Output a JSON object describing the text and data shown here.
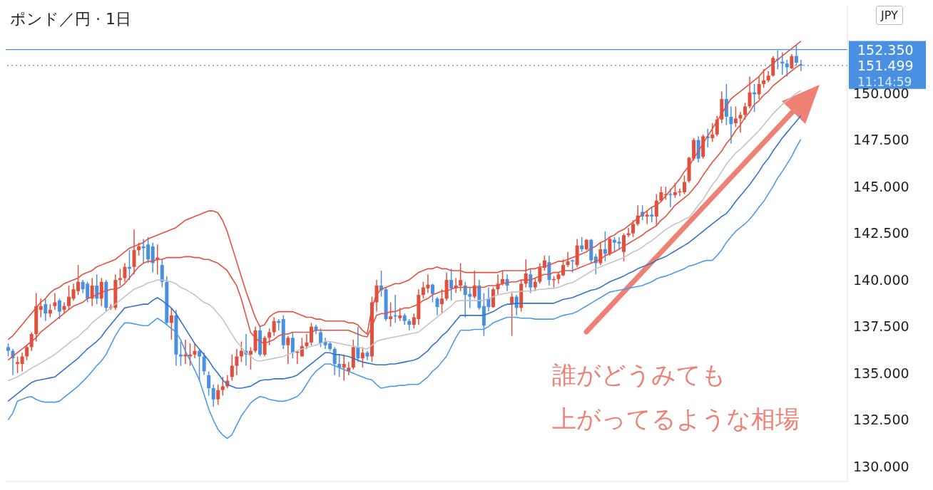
{
  "chart_data": {
    "type": "candlestick",
    "title": "ポンド／円 · 1日",
    "ylabel": "JPY",
    "tick_labels": "y",
    "categories": [
      null,
      null,
      null,
      null,
      null,
      null,
      null,
      null,
      null,
      null,
      null,
      null,
      null,
      null,
      null,
      null,
      null,
      null,
      null,
      null,
      null,
      null,
      null,
      null,
      null,
      null,
      null,
      null,
      null,
      null,
      null,
      null,
      null,
      null,
      null,
      null,
      null,
      null,
      null,
      null,
      null,
      null,
      null,
      null,
      null,
      null,
      null,
      null,
      null,
      null,
      null,
      null,
      null,
      null,
      null,
      null,
      null,
      null,
      null,
      null,
      null,
      null,
      null,
      null,
      null,
      null,
      null,
      null,
      null,
      null,
      null,
      null,
      null,
      null,
      null,
      null,
      null,
      null,
      null,
      null,
      null,
      null,
      null,
      null,
      null,
      null,
      null,
      null,
      null,
      null,
      null,
      null,
      null,
      null,
      null,
      null,
      null,
      null,
      null,
      null,
      null,
      null,
      null,
      null,
      null,
      null,
      null,
      null,
      null,
      null,
      null,
      null,
      null,
      null,
      null,
      null,
      null,
      null,
      null,
      null,
      null,
      null,
      null,
      null,
      null,
      null,
      null,
      null,
      null,
      null,
      null,
      null,
      null,
      null,
      null,
      null,
      null,
      null,
      null,
      null,
      null,
      null,
      null,
      null,
      null,
      null,
      null,
      null,
      null,
      null,
      null,
      null,
      null,
      null,
      null,
      null,
      null,
      null,
      null,
      null,
      null,
      null,
      null,
      null,
      null,
      null,
      null,
      null,
      null,
      null,
      null
    ],
    "ohlc": [
      [
        136.4,
        136.6,
        135.9,
        136.2
      ],
      [
        136.2,
        136.3,
        134.9,
        135.8
      ],
      [
        135.5,
        135.9,
        135.0,
        135.6
      ],
      [
        135.5,
        136.1,
        135.1,
        135.9
      ],
      [
        135.9,
        136.5,
        135.7,
        136.4
      ],
      [
        136.4,
        137.2,
        136.2,
        137.1
      ],
      [
        137.1,
        139.3,
        136.7,
        138.6
      ],
      [
        138.4,
        139.0,
        138.0,
        138.6
      ],
      [
        138.7,
        139.0,
        137.8,
        138.2
      ],
      [
        138.2,
        138.7,
        138.0,
        138.4
      ],
      [
        138.6,
        139.3,
        138.4,
        138.8
      ],
      [
        138.9,
        139.0,
        137.9,
        138.3
      ],
      [
        138.4,
        138.8,
        138.2,
        138.6
      ],
      [
        138.6,
        139.7,
        138.4,
        139.1
      ],
      [
        139.0,
        139.8,
        138.9,
        139.5
      ],
      [
        139.4,
        140.8,
        139.2,
        139.9
      ],
      [
        139.9,
        140.0,
        139.3,
        139.5
      ],
      [
        139.8,
        139.9,
        138.8,
        139.0
      ],
      [
        139.0,
        140.1,
        138.6,
        139.7
      ],
      [
        139.7,
        140.3,
        138.7,
        139.0
      ],
      [
        139.0,
        140.1,
        138.6,
        139.9
      ],
      [
        139.9,
        140.0,
        138.3,
        138.5
      ],
      [
        138.5,
        138.7,
        138.4,
        138.55
      ],
      [
        138.5,
        140.3,
        138.4,
        140.0
      ],
      [
        140.0,
        140.6,
        139.7,
        140.1
      ],
      [
        140.1,
        140.9,
        139.9,
        140.7
      ],
      [
        140.7,
        141.6,
        140.0,
        140.6
      ],
      [
        140.7,
        142.7,
        140.3,
        141.6
      ],
      [
        141.6,
        142.0,
        141.3,
        141.8
      ],
      [
        141.8,
        142.2,
        140.9,
        141.7
      ],
      [
        141.9,
        142.3,
        140.9,
        141.1
      ],
      [
        141.8,
        142.0,
        140.4,
        140.9
      ],
      [
        141.1,
        141.9,
        140.3,
        141.2
      ],
      [
        140.8,
        141.1,
        139.6,
        139.9
      ],
      [
        139.9,
        140.2,
        137.6,
        137.7
      ],
      [
        137.7,
        138.5,
        136.8,
        138.1
      ],
      [
        138.1,
        138.4,
        135.4,
        136.0
      ],
      [
        136.0,
        136.7,
        135.4,
        135.9
      ],
      [
        135.9,
        136.8,
        135.5,
        136.0
      ],
      [
        135.9,
        136.6,
        135.4,
        136.0
      ],
      [
        136.0,
        136.6,
        135.8,
        136.2
      ],
      [
        136.2,
        136.3,
        134.6,
        135.9
      ],
      [
        135.9,
        136.1,
        134.9,
        135.1
      ],
      [
        134.9,
        135.1,
        133.8,
        134.2
      ],
      [
        134.2,
        134.4,
        133.2,
        133.6
      ],
      [
        133.6,
        134.4,
        133.3,
        134.1
      ],
      [
        134.1,
        134.8,
        133.8,
        134.3
      ],
      [
        134.3,
        134.9,
        134.2,
        134.6
      ],
      [
        134.8,
        136.0,
        134.6,
        135.4
      ],
      [
        135.4,
        136.3,
        134.9,
        135.9
      ],
      [
        135.9,
        136.7,
        135.6,
        136.2
      ],
      [
        136.2,
        137.1,
        135.4,
        136.0
      ],
      [
        136.0,
        136.4,
        135.2,
        136.2
      ],
      [
        136.2,
        137.5,
        136.1,
        137.3
      ],
      [
        137.3,
        137.5,
        135.9,
        136.0
      ],
      [
        136.0,
        137.0,
        135.9,
        136.9
      ],
      [
        136.9,
        137.4,
        136.5,
        137.2
      ],
      [
        137.2,
        138.0,
        137.0,
        137.8
      ],
      [
        137.8,
        137.9,
        137.3,
        137.7
      ],
      [
        137.9,
        138.1,
        136.3,
        136.5
      ],
      [
        136.5,
        137.0,
        135.5,
        136.9
      ],
      [
        136.9,
        137.2,
        135.8,
        136.1
      ],
      [
        136.1,
        136.2,
        135.5,
        136.15
      ],
      [
        135.9,
        136.9,
        135.9,
        136.45
      ],
      [
        136.45,
        137.1,
        136.3,
        136.65
      ],
      [
        136.65,
        137.7,
        136.5,
        137.5
      ],
      [
        137.5,
        137.6,
        137.1,
        137.3
      ],
      [
        137.2,
        137.4,
        136.4,
        136.6
      ],
      [
        136.7,
        136.9,
        136.3,
        136.5
      ],
      [
        136.6,
        136.7,
        136.2,
        136.3
      ],
      [
        136.3,
        136.4,
        134.9,
        135.5
      ],
      [
        135.5,
        136.0,
        134.8,
        135.3
      ],
      [
        135.3,
        136.0,
        134.6,
        135.5
      ],
      [
        135.1,
        135.6,
        134.9,
        135.3
      ],
      [
        135.3,
        136.8,
        135.2,
        136.4
      ],
      [
        136.4,
        137.5,
        135.6,
        135.8
      ],
      [
        135.8,
        136.4,
        135.3,
        136.1
      ],
      [
        136.1,
        136.2,
        135.7,
        135.9
      ],
      [
        135.9,
        139.1,
        135.6,
        138.8
      ],
      [
        138.8,
        140.0,
        138.3,
        139.7
      ],
      [
        139.7,
        140.5,
        139.1,
        139.45
      ],
      [
        139.5,
        139.6,
        137.8,
        137.9
      ],
      [
        137.9,
        138.8,
        137.5,
        138.05
      ],
      [
        138.1,
        139.2,
        137.7,
        138.05
      ],
      [
        137.95,
        138.5,
        137.8,
        138.1
      ],
      [
        138.1,
        138.2,
        137.6,
        137.8
      ],
      [
        137.8,
        137.9,
        137.3,
        137.6
      ],
      [
        137.6,
        138.2,
        137.4,
        138.0
      ],
      [
        137.9,
        139.5,
        137.6,
        139.2
      ],
      [
        139.2,
        139.9,
        139.0,
        139.6
      ],
      [
        139.55,
        140.3,
        139.3,
        139.75
      ],
      [
        139.75,
        139.8,
        138.8,
        139.25
      ],
      [
        139.0,
        139.1,
        138.1,
        138.55
      ],
      [
        138.7,
        139.5,
        138.2,
        139.0
      ],
      [
        139.0,
        140.4,
        138.9,
        140.0
      ],
      [
        140.0,
        140.6,
        138.9,
        139.55
      ],
      [
        139.55,
        140.1,
        139.3,
        139.7
      ],
      [
        139.7,
        140.9,
        139.4,
        140.0
      ],
      [
        139.7,
        139.9,
        138.0,
        139.2
      ],
      [
        139.25,
        139.6,
        138.5,
        139.1
      ],
      [
        139.1,
        140.5,
        139.0,
        139.7
      ],
      [
        139.7,
        140.0,
        138.4,
        138.5
      ],
      [
        138.6,
        139.3,
        137.0,
        137.55
      ],
      [
        139.0,
        139.6,
        138.3,
        138.55
      ],
      [
        138.55,
        139.6,
        138.5,
        139.5
      ],
      [
        139.5,
        140.3,
        139.2,
        139.8
      ],
      [
        139.8,
        140.5,
        139.7,
        140.05
      ],
      [
        140.05,
        140.3,
        139.4,
        139.7
      ],
      [
        138.7,
        139.3,
        137.0,
        139.1
      ],
      [
        139.1,
        139.2,
        138.1,
        138.5
      ],
      [
        138.5,
        140.0,
        138.3,
        139.8
      ],
      [
        139.8,
        141.1,
        139.6,
        140.35
      ],
      [
        140.3,
        140.6,
        139.3,
        139.6
      ],
      [
        139.6,
        140.1,
        139.4,
        139.9
      ],
      [
        139.9,
        140.9,
        139.8,
        140.65
      ],
      [
        140.65,
        141.3,
        140.5,
        141.05
      ],
      [
        140.95,
        141.3,
        139.7,
        140.0
      ],
      [
        140.0,
        140.2,
        139.6,
        140.05
      ],
      [
        140.05,
        140.4,
        139.8,
        140.3
      ],
      [
        140.25,
        141.1,
        140.2,
        140.8
      ],
      [
        140.8,
        141.5,
        140.7,
        141.0
      ],
      [
        141.05,
        141.1,
        140.4,
        141.0
      ],
      [
        140.8,
        142.2,
        140.7,
        141.85
      ],
      [
        141.85,
        142.3,
        141.5,
        141.65
      ],
      [
        141.65,
        142.2,
        141.6,
        142.15
      ],
      [
        142.15,
        142.2,
        140.9,
        141.05
      ],
      [
        141.25,
        141.4,
        140.3,
        140.9
      ],
      [
        140.9,
        142.0,
        140.8,
        141.65
      ],
      [
        141.65,
        142.6,
        141.0,
        141.4
      ],
      [
        141.4,
        142.3,
        141.3,
        142.2
      ],
      [
        142.15,
        142.3,
        141.5,
        142.0
      ],
      [
        142.05,
        142.3,
        141.6,
        141.95
      ],
      [
        141.5,
        142.5,
        141.0,
        142.4
      ],
      [
        142.4,
        142.8,
        142.3,
        142.5
      ],
      [
        142.5,
        143.2,
        142.3,
        143.0
      ],
      [
        143.0,
        144.0,
        142.9,
        143.45
      ],
      [
        143.65,
        144.0,
        143.2,
        143.4
      ],
      [
        143.4,
        143.7,
        143.0,
        143.5
      ],
      [
        143.5,
        143.9,
        143.1,
        143.4
      ],
      [
        143.4,
        144.6,
        142.9,
        144.25
      ],
      [
        144.25,
        145.0,
        144.2,
        144.7
      ],
      [
        144.55,
        145.0,
        144.3,
        144.6
      ],
      [
        144.6,
        144.9,
        143.9,
        144.55
      ],
      [
        144.55,
        145.2,
        144.4,
        144.7
      ],
      [
        144.7,
        144.9,
        144.5,
        144.75
      ],
      [
        144.7,
        145.6,
        144.6,
        145.25
      ],
      [
        145.3,
        146.6,
        145.2,
        146.55
      ],
      [
        146.5,
        147.6,
        146.4,
        147.5
      ],
      [
        147.5,
        147.7,
        146.3,
        146.5
      ],
      [
        146.6,
        147.8,
        146.5,
        147.7
      ],
      [
        147.7,
        148.1,
        147.1,
        147.6
      ],
      [
        147.6,
        148.4,
        147.4,
        147.8
      ],
      [
        147.8,
        148.8,
        147.7,
        148.6
      ],
      [
        148.6,
        150.1,
        148.4,
        149.7
      ],
      [
        149.7,
        150.5,
        148.3,
        148.75
      ],
      [
        148.75,
        149.3,
        147.3,
        148.35
      ],
      [
        148.4,
        149.3,
        148.2,
        148.65
      ],
      [
        148.65,
        149.0,
        147.9,
        148.85
      ],
      [
        148.85,
        149.5,
        148.6,
        149.3
      ],
      [
        149.3,
        150.9,
        149.2,
        150.05
      ],
      [
        150.05,
        150.5,
        149.0,
        149.95
      ],
      [
        149.95,
        150.9,
        149.7,
        150.5
      ],
      [
        150.5,
        151.3,
        150.3,
        150.7
      ],
      [
        150.7,
        151.2,
        150.6,
        150.95
      ],
      [
        150.95,
        152.0,
        150.9,
        151.9
      ],
      [
        151.85,
        152.3,
        151.3,
        151.8
      ],
      [
        151.7,
        152.2,
        151.0,
        151.6
      ],
      [
        151.6,
        151.8,
        150.9,
        151.4
      ],
      [
        151.35,
        152.1,
        151.3,
        152.0
      ],
      [
        152.0,
        152.6,
        151.5,
        151.65
      ],
      [
        151.55,
        151.8,
        151.2,
        151.499
      ]
    ],
    "colors": [
      "#4a90e2",
      "#4a90e2",
      "#e0503c",
      "#e0503c",
      "#e0503c",
      "#e0503c",
      "#e0503c",
      "#e0503c",
      "#4a90e2",
      "#e0503c",
      "#e0503c",
      "#4a90e2",
      "#e0503c",
      "#e0503c",
      "#e0503c",
      "#e0503c",
      "#4a90e2",
      "#4a90e2",
      "#e0503c",
      "#4a90e2",
      "#e0503c",
      "#4a90e2",
      "#e0503c",
      "#e0503c",
      "#e0503c",
      "#e0503c",
      "#4a90e2",
      "#e0503c",
      "#e0503c",
      "#4a90e2",
      "#4a90e2",
      "#4a90e2",
      "#e0503c",
      "#4a90e2",
      "#4a90e2",
      "#e0503c",
      "#4a90e2",
      "#4a90e2",
      "#e0503c",
      "#e0503c",
      "#e0503c",
      "#4a90e2",
      "#4a90e2",
      "#4a90e2",
      "#4a90e2",
      "#e0503c",
      "#e0503c",
      "#e0503c",
      "#e0503c",
      "#e0503c",
      "#e0503c",
      "#4a90e2",
      "#e0503c",
      "#e0503c",
      "#4a90e2",
      "#e0503c",
      "#e0503c",
      "#e0503c",
      "#4a90e2",
      "#4a90e2",
      "#e0503c",
      "#4a90e2",
      "#e0503c",
      "#e0503c",
      "#e0503c",
      "#e0503c",
      "#4a90e2",
      "#4a90e2",
      "#4a90e2",
      "#4a90e2",
      "#4a90e2",
      "#4a90e2",
      "#e0503c",
      "#e0503c",
      "#e0503c",
      "#4a90e2",
      "#e0503c",
      "#4a90e2",
      "#e0503c",
      "#e0503c",
      "#4a90e2",
      "#4a90e2",
      "#e0503c",
      "#4a90e2",
      "#e0503c",
      "#4a90e2",
      "#4a90e2",
      "#e0503c",
      "#e0503c",
      "#e0503c",
      "#e0503c",
      "#4a90e2",
      "#4a90e2",
      "#e0503c",
      "#e0503c",
      "#4a90e2",
      "#e0503c",
      "#e0503c",
      "#4a90e2",
      "#4a90e2",
      "#e0503c",
      "#4a90e2",
      "#4a90e2",
      "#4a90e2",
      "#e0503c",
      "#e0503c",
      "#e0503c",
      "#4a90e2",
      "#e0503c",
      "#4a90e2",
      "#e0503c",
      "#e0503c",
      "#4a90e2",
      "#e0503c",
      "#e0503c",
      "#e0503c",
      "#4a90e2",
      "#e0503c",
      "#e0503c",
      "#e0503c",
      "#e0503c",
      "#4a90e2",
      "#e0503c",
      "#4a90e2",
      "#e0503c",
      "#4a90e2",
      "#4a90e2",
      "#e0503c",
      "#4a90e2",
      "#e0503c",
      "#4a90e2",
      "#4a90e2",
      "#e0503c",
      "#e0503c",
      "#e0503c",
      "#e0503c",
      "#4a90e2",
      "#e0503c",
      "#4a90e2",
      "#e0503c",
      "#e0503c",
      "#e0503c",
      "#4a90e2",
      "#e0503c",
      "#e0503c",
      "#e0503c",
      "#e0503c",
      "#e0503c",
      "#4a90e2",
      "#e0503c",
      "#4a90e2",
      "#e0503c",
      "#e0503c",
      "#e0503c",
      "#4a90e2",
      "#4a90e2",
      "#e0503c",
      "#e0503c",
      "#e0503c",
      "#e0503c",
      "#4a90e2",
      "#e0503c",
      "#e0503c",
      "#e0503c",
      "#e0503c",
      "#4a90e2",
      "#4a90e2",
      "#4a90e2",
      "#e0503c",
      "#4a90e2",
      "#4a90e2"
    ],
    "series": [
      {
        "type": "line",
        "color": "#e5503f",
        "values": [
          136.8,
          137.0,
          137.3,
          137.6,
          137.9,
          138.2,
          138.5,
          138.8,
          139.0,
          139.3,
          139.5,
          139.6,
          139.8,
          139.9,
          140.0,
          140.1,
          140.3,
          140.4,
          140.5,
          140.7,
          140.8,
          140.9,
          141.0,
          141.1,
          141.3,
          141.5,
          141.7,
          141.8,
          141.9,
          142.0,
          142.2,
          142.3,
          142.4,
          142.5,
          142.6,
          142.7,
          142.8,
          143.0,
          143.2,
          143.3,
          143.4,
          143.5,
          143.6,
          143.7,
          143.7,
          143.6,
          143.2,
          142.6,
          141.8,
          141.0,
          140.2,
          139.4,
          138.7,
          138.0,
          137.5,
          137.6,
          138.0,
          138.2,
          138.3,
          138.3,
          138.3,
          138.3,
          138.2,
          138.1,
          138.0,
          138.0,
          137.9,
          137.9,
          137.8,
          137.8,
          137.8,
          137.8,
          137.8,
          137.7,
          137.7,
          137.6,
          137.3,
          137.1,
          138.5,
          139.2,
          139.5,
          139.6,
          139.7,
          139.8,
          139.8,
          139.9,
          140.0,
          140.2,
          140.4,
          140.5,
          140.6,
          140.6,
          140.7,
          140.6,
          140.6,
          140.5,
          140.5,
          140.5,
          140.4,
          140.4,
          140.4,
          140.4,
          140.4,
          140.4,
          140.4,
          140.4,
          140.5,
          140.5,
          140.5,
          140.5,
          140.5,
          140.5,
          140.6,
          140.6,
          140.7,
          140.7,
          140.8,
          140.9,
          141.0,
          141.0,
          141.1,
          141.2,
          141.3,
          141.4,
          141.5,
          141.7,
          141.8,
          142.0,
          142.1,
          142.3,
          142.4,
          142.6,
          142.7,
          142.9,
          143.1,
          143.3,
          143.5,
          143.7,
          143.9,
          144.0,
          144.2,
          144.5,
          144.8,
          145.1,
          145.4,
          145.8,
          146.1,
          146.5,
          146.9,
          147.3,
          147.7,
          148.1,
          148.5,
          148.9,
          149.3,
          149.7,
          149.9,
          150.1,
          150.3,
          150.5,
          150.7,
          150.9,
          151.2,
          151.4,
          151.6,
          151.8,
          152.0,
          152.2,
          152.4,
          152.6,
          152.8
        ]
      },
      {
        "type": "line",
        "color": "#e5503f",
        "values": [
          135.7,
          135.9,
          136.1,
          136.3,
          136.5,
          136.7,
          136.9,
          137.2,
          137.4,
          137.6,
          137.8,
          138.0,
          138.2,
          138.4,
          138.6,
          138.7,
          138.8,
          139.0,
          139.1,
          139.2,
          139.35,
          139.4,
          139.5,
          139.5,
          139.6,
          139.8,
          140.1,
          140.4,
          140.7,
          140.9,
          141.0,
          141.0,
          141.1,
          141.1,
          141.2,
          141.2,
          141.2,
          141.2,
          141.25,
          141.25,
          141.2,
          141.2,
          141.1,
          141.1,
          141.0,
          140.9,
          140.7,
          140.5,
          140.1,
          139.7,
          139.0,
          138.1,
          137.2,
          136.9,
          136.7,
          136.6,
          136.7,
          136.8,
          137.0,
          137.1,
          137.1,
          137.2,
          137.2,
          137.2,
          137.2,
          137.2,
          137.3,
          137.3,
          137.3,
          137.3,
          137.3,
          137.3,
          137.3,
          137.3,
          137.2,
          137.1,
          137.0,
          136.95,
          137.5,
          138.1,
          138.2,
          138.2,
          138.3,
          138.3,
          138.4,
          138.5,
          138.5,
          138.6,
          138.7,
          138.9,
          139.0,
          139.2,
          139.3,
          139.4,
          139.4,
          139.5,
          139.6,
          139.6,
          139.6,
          139.6,
          139.6,
          139.6,
          139.6,
          139.7,
          139.7,
          139.7,
          139.8,
          139.85,
          139.9,
          139.9,
          140.0,
          140.0,
          140.0,
          140.1,
          140.2,
          140.3,
          140.3,
          140.4,
          140.4,
          140.5,
          140.5,
          140.5,
          140.6,
          140.7,
          140.8,
          140.9,
          141.0,
          141.1,
          141.3,
          141.4,
          141.5,
          141.65,
          141.8,
          141.95,
          142.1,
          142.25,
          142.4,
          142.6,
          142.75,
          142.9,
          143.2,
          143.4,
          143.7,
          144.0,
          144.2,
          144.4,
          144.6,
          144.9,
          145.2,
          145.6,
          145.95,
          146.3,
          146.6,
          146.9,
          147.3,
          147.6,
          148.0,
          148.3,
          148.7,
          149.0,
          149.4,
          149.6,
          149.9,
          150.1,
          150.4,
          150.6,
          150.8,
          151.0,
          151.2,
          151.4,
          151.56
        ]
      },
      {
        "type": "line",
        "color": "#c4c4c4",
        "values": [
          134.6,
          134.7,
          134.8,
          134.95,
          135.1,
          135.27,
          135.4,
          135.55,
          135.7,
          135.85,
          136.0,
          136.2,
          136.4,
          136.6,
          136.8,
          136.95,
          137.2,
          137.4,
          137.7,
          137.9,
          138.1,
          138.3,
          138.5,
          138.7,
          138.9,
          139.1,
          139.3,
          139.5,
          139.6,
          139.7,
          139.85,
          139.9,
          140.0,
          140.0,
          139.95,
          139.9,
          139.8,
          139.6,
          139.5,
          139.35,
          139.2,
          139.0,
          138.8,
          138.7,
          138.5,
          138.2,
          137.9,
          137.5,
          137.1,
          136.7,
          136.4,
          136.1,
          135.9,
          135.7,
          135.65,
          135.7,
          135.75,
          135.8,
          135.85,
          135.9,
          136.0,
          136.1,
          136.2,
          136.3,
          136.35,
          136.45,
          136.5,
          136.6,
          136.7,
          136.7,
          136.65,
          136.6,
          136.55,
          136.5,
          136.45,
          136.4,
          136.35,
          136.3,
          136.5,
          136.7,
          136.8,
          136.85,
          136.9,
          136.95,
          137.0,
          137.05,
          137.1,
          137.15,
          137.2,
          137.4,
          137.6,
          137.8,
          138.0,
          138.2,
          138.4,
          138.6,
          138.85,
          138.9,
          138.9,
          138.9,
          138.9,
          138.9,
          138.9,
          139.0,
          139.1,
          139.2,
          139.25,
          139.3,
          139.35,
          139.35,
          139.4,
          139.4,
          139.4,
          139.45,
          139.5,
          139.5,
          139.55,
          139.55,
          139.6,
          139.7,
          139.8,
          139.85,
          140.0,
          140.15,
          140.3,
          140.45,
          140.6,
          140.7,
          140.8,
          140.9,
          141.0,
          141.1,
          141.2,
          141.35,
          141.5,
          141.6,
          141.75,
          141.95,
          142.1,
          142.3,
          142.5,
          142.7,
          142.85,
          143.0,
          143.1,
          143.25,
          143.35,
          143.66,
          144.0,
          144.3,
          144.7,
          145.1,
          145.4,
          145.8,
          146.2,
          146.5,
          146.8,
          147.0,
          147.25,
          147.5,
          147.75,
          148.0,
          148.3,
          148.6,
          148.9,
          149.15,
          149.4,
          149.6,
          149.8,
          150.0,
          150.15
        ]
      },
      {
        "type": "line",
        "color": "#3572c9",
        "values": [
          133.5,
          133.7,
          133.9,
          134.1,
          134.3,
          134.5,
          134.6,
          134.65,
          134.7,
          134.75,
          134.8,
          135.0,
          135.2,
          135.4,
          135.6,
          135.8,
          136.05,
          136.3,
          136.5,
          136.7,
          136.95,
          137.3,
          137.6,
          137.9,
          138.2,
          138.5,
          138.55,
          138.6,
          138.65,
          138.7,
          138.7,
          138.9,
          139.05,
          138.9,
          138.7,
          138.5,
          138.2,
          137.8,
          137.4,
          137.0,
          136.6,
          136.3,
          136.0,
          135.7,
          135.3,
          135.0,
          134.65,
          134.4,
          134.3,
          134.2,
          134.2,
          134.25,
          134.3,
          134.45,
          134.6,
          134.65,
          134.65,
          134.7,
          134.7,
          134.7,
          134.75,
          134.8,
          134.9,
          135.1,
          135.3,
          135.5,
          135.7,
          135.9,
          136.1,
          136.1,
          136.0,
          136.0,
          135.95,
          135.9,
          135.8,
          135.7,
          135.6,
          135.55,
          135.5,
          135.45,
          135.45,
          135.45,
          135.5,
          135.5,
          135.55,
          135.6,
          135.65,
          135.7,
          135.8,
          136.0,
          136.2,
          136.5,
          136.7,
          137.0,
          137.2,
          137.5,
          137.8,
          138.1,
          138.1,
          138.1,
          138.1,
          138.1,
          138.1,
          138.2,
          138.3,
          138.45,
          138.6,
          138.7,
          138.7,
          138.75,
          138.75,
          138.75,
          138.75,
          138.75,
          138.75,
          138.75,
          138.75,
          138.75,
          138.85,
          138.95,
          139.0,
          139.05,
          139.15,
          139.25,
          139.35,
          139.45,
          139.5,
          139.6,
          139.75,
          139.9,
          140.0,
          140.1,
          140.2,
          140.35,
          140.45,
          140.6,
          140.7,
          140.8,
          140.9,
          141.05,
          141.15,
          141.25,
          141.4,
          141.55,
          141.7,
          141.85,
          142.0,
          142.2,
          142.4,
          142.6,
          142.8,
          143.0,
          143.2,
          143.4,
          143.55,
          143.85,
          144.2,
          144.5,
          144.8,
          145.1,
          145.45,
          145.8,
          146.2,
          146.5,
          146.9,
          147.25,
          147.6,
          147.9,
          148.2,
          148.5,
          148.8
        ]
      },
      {
        "type": "line",
        "color": "#4b9be9",
        "values": [
          132.5,
          132.85,
          133.5,
          133.6,
          133.7,
          133.75,
          133.6,
          133.5,
          133.45,
          133.45,
          133.45,
          133.5,
          133.7,
          133.9,
          134.1,
          134.3,
          134.55,
          134.8,
          135.1,
          135.4,
          135.65,
          136.0,
          136.5,
          137.0,
          137.4,
          137.7,
          137.7,
          137.65,
          137.6,
          137.55,
          137.55,
          137.75,
          137.95,
          137.8,
          137.6,
          137.4,
          137.2,
          136.8,
          136.2,
          135.7,
          135.2,
          134.65,
          133.9,
          133.1,
          132.5,
          132.0,
          131.7,
          131.5,
          131.7,
          132.2,
          132.7,
          133.05,
          133.4,
          133.6,
          133.75,
          133.7,
          133.6,
          133.55,
          133.5,
          133.5,
          133.55,
          133.65,
          133.75,
          134.0,
          134.4,
          134.8,
          135.1,
          135.3,
          135.5,
          135.5,
          135.4,
          135.3,
          135.2,
          135.1,
          135.0,
          134.9,
          134.8,
          134.7,
          134.65,
          134.4,
          134.2,
          134.25,
          134.3,
          134.3,
          134.35,
          134.35,
          134.4,
          134.4,
          134.4,
          134.6,
          134.8,
          135.1,
          135.3,
          135.6,
          135.9,
          136.4,
          136.9,
          137.3,
          137.3,
          137.3,
          137.35,
          137.35,
          137.35,
          137.5,
          137.7,
          137.8,
          137.9,
          138.0,
          138.0,
          138.0,
          137.95,
          137.95,
          137.95,
          137.9,
          137.9,
          137.9,
          137.9,
          137.9,
          138.0,
          138.1,
          138.15,
          138.2,
          138.3,
          138.45,
          138.6,
          138.75,
          138.9,
          139.05,
          139.2,
          139.35,
          139.4,
          139.45,
          139.5,
          139.55,
          139.6,
          139.65,
          139.7,
          139.8,
          139.9,
          140.05,
          140.15,
          140.2,
          140.3,
          140.4,
          140.5,
          140.6,
          140.75,
          140.8,
          140.9,
          141.0,
          141.05,
          141.05,
          141.3,
          141.6,
          142.0,
          142.3,
          142.6,
          142.8,
          143.0,
          143.25,
          143.55,
          143.9,
          144.2,
          144.6,
          145.0,
          145.45,
          145.8,
          146.2,
          146.6,
          147.1,
          147.55
        ]
      }
    ],
    "ylim": [
      129.2,
      154.7
    ],
    "yticks": [
      {
        "value": 130,
        "label": "130.000"
      },
      {
        "value": 132.5,
        "label": "132.500"
      },
      {
        "value": 135,
        "label": "135.000"
      },
      {
        "value": 137.5,
        "label": "137.500"
      },
      {
        "value": 140,
        "label": "140.000"
      },
      {
        "value": 142.5,
        "label": "142.500"
      },
      {
        "value": 145,
        "label": "145.000"
      },
      {
        "value": 147.5,
        "label": "147.500"
      },
      {
        "value": 150,
        "label": "150.000"
      }
    ],
    "ref_lines": [
      {
        "axis": "y",
        "value": 152.35,
        "label": "152.350",
        "color": "#4a90e2",
        "line_style": "solid"
      },
      {
        "axis": "y",
        "value": 151.499,
        "label": "151.499",
        "color": "#4a90e2",
        "line_style": "dotted"
      }
    ],
    "annotations": [
      "誰がどうみても",
      "上がってるような相場",
      "11:14:59"
    ]
  }
}
